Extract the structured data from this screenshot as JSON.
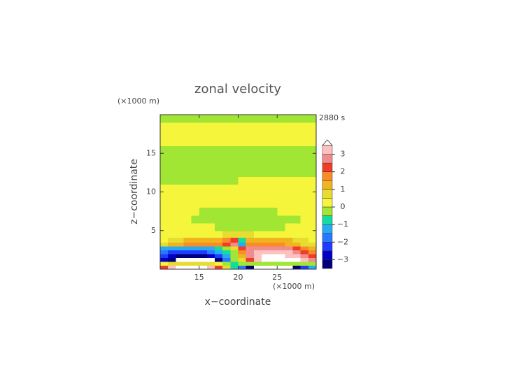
{
  "chart_data": {
    "type": "contour",
    "title": "zonal velocity",
    "time_label": "2880 s",
    "x_label": "x−coordinate",
    "y_label": "z−coordinate",
    "x_unit_label": "(×1000 m)",
    "y_unit_label": "(×1000 m)",
    "xlim": [
      10,
      30
    ],
    "ylim": [
      0,
      20
    ],
    "xticks": [
      15,
      20,
      25
    ],
    "yticks": [
      5,
      10,
      15
    ],
    "x": [
      10.5,
      11.5,
      12.5,
      13.5,
      14.5,
      15.5,
      16.5,
      17.5,
      18.5,
      19.5,
      20.5,
      21.5,
      22.5,
      23.5,
      24.5,
      25.5,
      26.5,
      27.5,
      28.5,
      29.5
    ],
    "z": [
      0.25,
      0.75,
      1.25,
      1.75,
      2.25,
      2.75,
      3.25,
      3.75,
      4.5,
      5.5,
      6.5,
      7.5,
      8.5,
      9.5,
      10.5,
      11.5,
      12.5,
      13.5,
      14.5,
      15.5,
      16.5,
      17.5,
      18.5,
      19.5
    ],
    "values": [
      [
        2.2,
        3.2,
        3.8,
        3.8,
        3.8,
        3.8,
        3.2,
        2.2,
        0.7,
        -0.8,
        -1.8,
        -3.2,
        -3.8,
        -3.8,
        -3.8,
        -3.8,
        -3.8,
        -3.2,
        -2.3,
        -1.3
      ],
      [
        0.3,
        0.7,
        0.7,
        0.7,
        0.7,
        0.7,
        0.7,
        0.3,
        -0.3,
        -0.8,
        -0.3,
        -0.3,
        -0.3,
        -0.3,
        -0.3,
        -0.3,
        -0.3,
        -0.3,
        -0.3,
        -0.3
      ],
      [
        -2.8,
        -3.2,
        -3.8,
        -3.8,
        -3.8,
        -3.8,
        -3.6,
        -3.2,
        -1.8,
        -0.3,
        0.7,
        2.2,
        3.3,
        3.8,
        3.8,
        3.8,
        3.8,
        3.6,
        3.2,
        2.7
      ],
      [
        -2.3,
        -2.8,
        -3.2,
        -3.3,
        -3.3,
        -3.2,
        -2.8,
        -2.3,
        -1.3,
        -0.3,
        1.2,
        2.7,
        3.3,
        3.6,
        3.6,
        3.6,
        3.3,
        3.2,
        2.7,
        2.2
      ],
      [
        -1.8,
        -2.3,
        -2.3,
        -2.3,
        -2.3,
        -2.3,
        -1.8,
        -1.3,
        -0.8,
        -0.3,
        1.7,
        2.7,
        3.2,
        3.2,
        3.2,
        3.2,
        3.2,
        2.7,
        2.2,
        1.7
      ],
      [
        -1.3,
        -1.3,
        -1.3,
        -1.3,
        -1.3,
        -1.3,
        -1.3,
        -0.8,
        -0.3,
        0.7,
        2.2,
        2.7,
        2.7,
        2.7,
        2.7,
        2.7,
        2.7,
        2.2,
        1.7,
        1.2
      ],
      [
        0.7,
        1.2,
        1.2,
        1.7,
        1.7,
        1.7,
        1.7,
        1.7,
        2.2,
        2.7,
        -1.3,
        1.7,
        1.7,
        1.7,
        1.7,
        1.7,
        1.2,
        1.2,
        0.7,
        0.7
      ],
      [
        0.3,
        0.7,
        0.7,
        1.2,
        1.2,
        1.2,
        1.2,
        1.2,
        1.7,
        2.2,
        -0.8,
        1.2,
        1.2,
        1.2,
        1.2,
        1.2,
        1.2,
        0.7,
        0.7,
        0.3
      ],
      [
        0.2,
        0.2,
        0.2,
        0.2,
        0.2,
        0.2,
        0.2,
        0.2,
        0.7,
        0.7,
        0.7,
        0.7,
        0.2,
        0.2,
        0.2,
        0.2,
        0.2,
        0.2,
        0.2,
        0.2
      ],
      [
        0.2,
        0.2,
        0.2,
        0.2,
        0.2,
        0.2,
        0.2,
        -0.2,
        -0.2,
        -0.2,
        -0.2,
        -0.2,
        -0.2,
        -0.2,
        -0.2,
        -0.2,
        0.2,
        0.2,
        0.2,
        0.2
      ],
      [
        0.2,
        0.2,
        0.2,
        0.2,
        -0.2,
        -0.2,
        -0.2,
        -0.2,
        -0.2,
        -0.2,
        -0.2,
        -0.2,
        -0.2,
        -0.2,
        -0.2,
        -0.2,
        -0.2,
        -0.2,
        0.2,
        0.2
      ],
      [
        0.2,
        0.2,
        0.2,
        0.2,
        0.2,
        -0.2,
        -0.2,
        -0.2,
        -0.2,
        -0.2,
        -0.2,
        -0.2,
        -0.2,
        -0.2,
        -0.2,
        0.2,
        0.2,
        0.2,
        0.2,
        0.2
      ],
      [
        0.2,
        0.2,
        0.2,
        0.2,
        0.2,
        0.2,
        0.2,
        0.2,
        0.2,
        0.2,
        0.2,
        0.2,
        0.2,
        0.2,
        0.2,
        0.2,
        0.2,
        0.2,
        0.2,
        0.2
      ],
      [
        0.2,
        0.2,
        0.2,
        0.2,
        0.2,
        0.2,
        0.2,
        0.2,
        0.2,
        0.2,
        0.2,
        0.2,
        0.2,
        0.2,
        0.2,
        0.2,
        0.2,
        0.2,
        0.2,
        0.2
      ],
      [
        0.2,
        0.2,
        0.2,
        0.2,
        0.2,
        0.2,
        0.2,
        0.2,
        0.2,
        0.2,
        0.2,
        0.2,
        0.2,
        0.2,
        0.2,
        0.2,
        0.2,
        0.2,
        0.2,
        0.2
      ],
      [
        -0.2,
        -0.2,
        -0.2,
        -0.2,
        -0.2,
        -0.2,
        -0.2,
        -0.2,
        -0.2,
        -0.2,
        0.2,
        0.2,
        0.2,
        0.2,
        0.2,
        0.2,
        0.2,
        0.2,
        0.2,
        0.2
      ],
      [
        -0.2,
        -0.2,
        -0.2,
        -0.2,
        -0.2,
        -0.2,
        -0.2,
        -0.2,
        -0.2,
        -0.2,
        -0.2,
        -0.2,
        -0.2,
        -0.2,
        -0.2,
        -0.2,
        -0.2,
        -0.2,
        -0.2,
        -0.2
      ],
      [
        -0.2,
        -0.2,
        -0.2,
        -0.2,
        -0.2,
        -0.2,
        -0.2,
        -0.2,
        -0.2,
        -0.2,
        -0.2,
        -0.2,
        -0.2,
        -0.2,
        -0.2,
        -0.2,
        -0.2,
        -0.2,
        -0.2,
        -0.2
      ],
      [
        -0.2,
        -0.2,
        -0.2,
        -0.2,
        -0.2,
        -0.2,
        -0.2,
        -0.2,
        -0.2,
        -0.2,
        -0.2,
        -0.2,
        -0.2,
        -0.2,
        -0.2,
        -0.2,
        -0.2,
        -0.2,
        -0.2,
        -0.2
      ],
      [
        -0.2,
        -0.2,
        -0.2,
        -0.2,
        -0.2,
        -0.2,
        -0.2,
        -0.2,
        -0.2,
        -0.2,
        -0.2,
        -0.2,
        -0.2,
        -0.2,
        -0.2,
        -0.2,
        -0.2,
        -0.2,
        -0.2,
        -0.2
      ],
      [
        0.2,
        0.2,
        0.2,
        0.2,
        0.2,
        0.2,
        0.2,
        0.2,
        0.2,
        0.2,
        0.2,
        0.2,
        0.2,
        0.2,
        0.2,
        0.2,
        0.2,
        0.2,
        0.2,
        0.2
      ],
      [
        0.2,
        0.2,
        0.2,
        0.2,
        0.2,
        0.2,
        0.2,
        0.2,
        0.2,
        0.2,
        0.2,
        0.2,
        0.2,
        0.2,
        0.2,
        0.2,
        0.2,
        0.2,
        0.2,
        0.2
      ],
      [
        0.2,
        0.2,
        0.2,
        0.2,
        0.2,
        0.2,
        0.2,
        0.2,
        0.2,
        0.2,
        0.2,
        0.2,
        0.2,
        0.2,
        0.2,
        0.2,
        0.2,
        0.2,
        0.2,
        0.2
      ],
      [
        -0.2,
        -0.2,
        -0.2,
        -0.2,
        -0.2,
        -0.2,
        -0.2,
        -0.2,
        -0.2,
        -0.2,
        -0.2,
        -0.2,
        -0.2,
        -0.2,
        -0.2,
        -0.2,
        -0.2,
        -0.2,
        -0.2,
        -0.2
      ]
    ],
    "levels": [
      -3.5,
      -3,
      -2.5,
      -2,
      -1.5,
      -1,
      -0.5,
      0,
      0.5,
      1,
      1.5,
      2,
      2.5,
      3,
      3.5
    ],
    "colors": [
      "#000078",
      "#0000c8",
      "#1e3cff",
      "#2878ff",
      "#28aaf0",
      "#14dca0",
      "#a0e632",
      "#f5f53c",
      "#e6dc32",
      "#f0b41e",
      "#fa8c28",
      "#f03c28",
      "#f08c8c",
      "#ffc0c0"
    ],
    "extend_color": "#ffffff",
    "cbar_ticks": [
      {
        "value": -3,
        "label": "−3"
      },
      {
        "value": -2,
        "label": "−2"
      },
      {
        "value": -1,
        "label": "−1"
      },
      0,
      1,
      2,
      3
    ]
  }
}
